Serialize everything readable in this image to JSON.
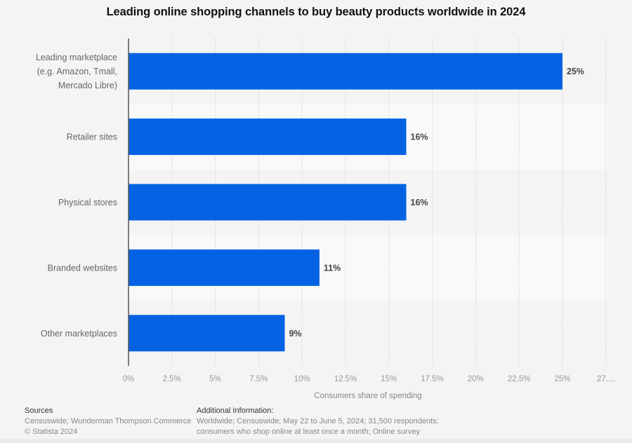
{
  "chart_data": {
    "type": "bar",
    "orientation": "horizontal",
    "title": "Leading online shopping channels to buy beauty products worldwide in 2024",
    "categories": [
      [
        "Leading marketplace",
        "(e.g. Amazon, Tmall,",
        "Mercado Libre)"
      ],
      [
        "Retailer sites"
      ],
      [
        "Physical stores"
      ],
      [
        "Branded websites"
      ],
      [
        "Other marketplaces"
      ]
    ],
    "values": [
      25,
      16,
      16,
      11,
      9
    ],
    "value_labels": [
      "25%",
      "16%",
      "16%",
      "11%",
      "9%"
    ],
    "xlabel": "Consumers share of spending",
    "ylabel": "",
    "xlim": [
      0,
      27.5
    ],
    "x_ticks": [
      0,
      2.5,
      5,
      7.5,
      10,
      12.5,
      15,
      17.5,
      20,
      22.5,
      25,
      27.5
    ],
    "x_tick_labels": [
      "0%",
      "2.5%",
      "5%",
      "7.5%",
      "10%",
      "12.5%",
      "15%",
      "17.5%",
      "20%",
      "22.5%",
      "25%",
      "27...."
    ],
    "grid": true,
    "legend": "none",
    "bar_color": "#0563e3"
  },
  "footer": {
    "sources_heading": "Sources",
    "sources_text": "Censuswide; Wunderman Thompson Commerce",
    "copyright": "© Statista 2024",
    "additional_heading": "Additional Information:",
    "additional_line1": "Worldwide; Censuswide; May 22 to June 5, 2024; 31,500 respondents;",
    "additional_line2": "consumers who shop online at least once a month; Online survey"
  }
}
